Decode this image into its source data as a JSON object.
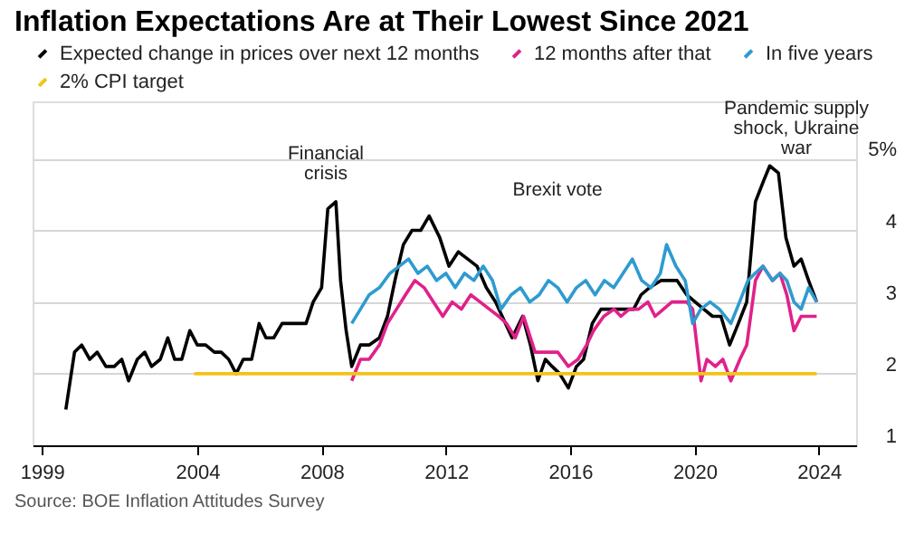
{
  "chart_data": {
    "type": "line",
    "title": "Inflation Expectations Are at Their Lowest Since 2021",
    "xlim": [
      1998.7,
      2025.2
    ],
    "xticks": [
      1999,
      2004,
      2008,
      2012,
      2016,
      2020,
      2024
    ],
    "ylim": [
      1,
      5.8
    ],
    "yticks": [
      1,
      2,
      3,
      4,
      {
        "value": 5,
        "label": "5%"
      }
    ],
    "grid": "y",
    "legend": "top left",
    "line_style": "solid",
    "marker": "none",
    "series": [
      {
        "name": "Expected change in prices over next 12 months",
        "color": "#000000",
        "x": [
          1999.77,
          2000.05,
          2000.28,
          2000.54,
          2000.78,
          2001.06,
          2001.33,
          2001.57,
          2001.79,
          2002.07,
          2002.31,
          2002.53,
          2002.81,
          2003.05,
          2003.27,
          2003.5,
          2003.76,
          2004.0,
          2004.27,
          2004.55,
          2004.77,
          2005.01,
          2005.25,
          2005.48,
          2005.75,
          2005.99,
          2006.21,
          2006.46,
          2006.73,
          2006.95,
          2007.23,
          2007.5,
          2007.73,
          2008.0,
          2008.2,
          2008.46,
          2008.61,
          2008.79,
          2008.97,
          2009.25,
          2009.53,
          2009.86,
          2010.12,
          2010.36,
          2010.63,
          2010.91,
          2011.19,
          2011.46,
          2011.8,
          2012.1,
          2012.4,
          2012.7,
          2013.0,
          2013.3,
          2013.6,
          2014.13,
          2014.47,
          2014.72,
          2014.96,
          2015.2,
          2015.42,
          2015.66,
          2015.94,
          2016.2,
          2016.43,
          2016.71,
          2016.99,
          2017.26,
          2017.54,
          2017.78,
          2018.04,
          2018.28,
          2018.55,
          2018.92,
          2019.44,
          2019.75,
          2020.02,
          2020.3,
          2020.58,
          2020.85,
          2021.13,
          2021.41,
          2021.68,
          2021.96,
          2022.23,
          2022.42,
          2022.7,
          2022.94,
          2023.2,
          2023.43,
          2023.67,
          2023.93
        ],
        "values": [
          1.5,
          2.3,
          2.4,
          2.2,
          2.3,
          2.1,
          2.1,
          2.2,
          1.9,
          2.2,
          2.3,
          2.1,
          2.2,
          2.5,
          2.2,
          2.2,
          2.6,
          2.4,
          2.4,
          2.3,
          2.3,
          2.2,
          2.0,
          2.2,
          2.2,
          2.7,
          2.5,
          2.5,
          2.7,
          2.7,
          2.7,
          2.7,
          3.0,
          3.2,
          4.3,
          4.4,
          3.3,
          2.6,
          2.1,
          2.4,
          2.4,
          2.5,
          2.8,
          3.3,
          3.8,
          4.0,
          4.0,
          4.2,
          3.9,
          3.5,
          3.7,
          3.6,
          3.5,
          3.2,
          3.0,
          2.5,
          2.8,
          2.4,
          1.9,
          2.2,
          2.1,
          2.0,
          1.8,
          2.1,
          2.2,
          2.7,
          2.9,
          2.9,
          2.9,
          2.9,
          2.9,
          3.1,
          3.2,
          3.3,
          3.3,
          3.1,
          3.0,
          2.9,
          2.8,
          2.8,
          2.4,
          2.7,
          3.0,
          4.4,
          4.7,
          4.9,
          4.8,
          3.9,
          3.5,
          3.6,
          3.3,
          3.0
        ]
      },
      {
        "name": "12 months after that",
        "color": "#e0218a",
        "x": [
          2008.97,
          2009.25,
          2009.53,
          2009.86,
          2010.12,
          2010.41,
          2010.7,
          2011.0,
          2011.3,
          2011.6,
          2011.9,
          2012.2,
          2012.5,
          2012.8,
          2013.1,
          2013.4,
          2013.7,
          2013.95,
          2014.23,
          2014.5,
          2014.87,
          2015.2,
          2015.6,
          2015.94,
          2016.25,
          2016.53,
          2016.75,
          2017.08,
          2017.41,
          2017.63,
          2017.9,
          2018.2,
          2018.5,
          2018.73,
          2019.0,
          2019.27,
          2019.5,
          2019.75,
          2019.94,
          2020.21,
          2020.4,
          2020.67,
          2020.91,
          2021.17,
          2021.46,
          2021.68,
          2021.96,
          2022.2,
          2022.51,
          2022.75,
          2022.97,
          2023.2,
          2023.43,
          2023.71,
          2023.93
        ],
        "values": [
          1.9,
          2.2,
          2.2,
          2.4,
          2.7,
          2.9,
          3.1,
          3.3,
          3.2,
          3.0,
          2.8,
          3.0,
          2.9,
          3.1,
          3.0,
          2.9,
          2.8,
          2.7,
          2.5,
          2.8,
          2.3,
          2.3,
          2.3,
          2.1,
          2.2,
          2.4,
          2.6,
          2.8,
          2.9,
          2.8,
          2.9,
          2.9,
          3.0,
          2.8,
          2.9,
          3.0,
          3.0,
          3.0,
          2.9,
          1.9,
          2.2,
          2.1,
          2.2,
          1.9,
          2.2,
          2.4,
          3.3,
          3.5,
          3.3,
          3.4,
          3.1,
          2.6,
          2.8,
          2.8,
          2.8
        ]
      },
      {
        "name": "In five years",
        "color": "#2e9bd0",
        "x": [
          2008.97,
          2009.25,
          2009.53,
          2009.86,
          2010.2,
          2010.5,
          2010.8,
          2011.1,
          2011.4,
          2011.7,
          2012.0,
          2012.3,
          2012.6,
          2012.9,
          2013.2,
          2013.5,
          2013.77,
          2014.1,
          2014.4,
          2014.7,
          2015.0,
          2015.3,
          2015.6,
          2015.9,
          2016.2,
          2016.5,
          2016.8,
          2017.1,
          2017.4,
          2017.7,
          2018.0,
          2018.3,
          2018.6,
          2018.9,
          2019.1,
          2019.4,
          2019.7,
          2019.94,
          2020.2,
          2020.5,
          2020.8,
          2021.17,
          2021.45,
          2021.72,
          2021.95,
          2022.2,
          2022.51,
          2022.75,
          2022.97,
          2023.2,
          2023.43,
          2023.67,
          2023.93
        ],
        "values": [
          2.7,
          2.9,
          3.1,
          3.2,
          3.4,
          3.5,
          3.6,
          3.4,
          3.5,
          3.3,
          3.4,
          3.2,
          3.4,
          3.3,
          3.5,
          3.3,
          2.9,
          3.1,
          3.2,
          3.0,
          3.1,
          3.3,
          3.2,
          3.0,
          3.2,
          3.3,
          3.1,
          3.3,
          3.2,
          3.4,
          3.6,
          3.3,
          3.2,
          3.4,
          3.8,
          3.5,
          3.3,
          2.7,
          2.9,
          3.0,
          2.9,
          2.7,
          3.0,
          3.3,
          3.4,
          3.5,
          3.3,
          3.4,
          3.3,
          3.0,
          2.9,
          3.2,
          3.0
        ]
      },
      {
        "name": "2% CPI target",
        "color": "#f2c31a",
        "x": [
          2003.9,
          2023.93
        ],
        "values": [
          2,
          2
        ]
      }
    ],
    "annotations": [
      "Financial\ncrisis",
      "Brexit vote",
      "Pandemic supply\nshock, Ukraine\nwar",
      "Source: BOE Inflation Attitudes Survey"
    ]
  }
}
